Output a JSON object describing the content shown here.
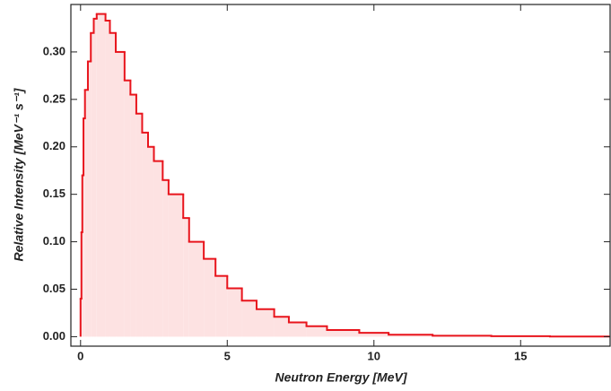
{
  "chart_data": {
    "type": "histogram",
    "xlabel": "Neutron Energy [MeV]",
    "ylabel": "Relative Intensity [MeV⁻¹ s⁻¹]",
    "bins": [
      0,
      0.03,
      0.06,
      0.1,
      0.15,
      0.25,
      0.35,
      0.45,
      0.55,
      0.85,
      1.0,
      1.2,
      1.5,
      1.7,
      1.9,
      2.1,
      2.3,
      2.5,
      2.8,
      3.0,
      3.5,
      3.7,
      4.2,
      4.6,
      5.0,
      5.5,
      6.0,
      6.6,
      7.1,
      7.7,
      8.4,
      9.5,
      10.5,
      12,
      14,
      16,
      18
    ],
    "values": [
      0.04,
      0.11,
      0.17,
      0.23,
      0.26,
      0.29,
      0.32,
      0.335,
      0.34,
      0.333,
      0.32,
      0.3,
      0.27,
      0.255,
      0.235,
      0.215,
      0.2,
      0.185,
      0.165,
      0.15,
      0.125,
      0.1,
      0.082,
      0.064,
      0.051,
      0.038,
      0.029,
      0.021,
      0.015,
      0.011,
      0.007,
      0.004,
      0.002,
      0.001,
      0.0005,
      0.0002
    ],
    "color": "#e8141c",
    "fill_color": "#fde2e2",
    "xlim": [
      -0.33,
      18.05
    ],
    "ylim": [
      -0.01,
      0.35
    ],
    "xticks": [
      0,
      5,
      10,
      15
    ],
    "yticks": [
      {
        "value": 0,
        "label": "0.00"
      },
      {
        "value": 0.05,
        "label": "0.05"
      },
      {
        "value": 0.1,
        "label": "0.10"
      },
      {
        "value": 0.15,
        "label": "0.15"
      },
      {
        "value": 0.2,
        "label": "0.20"
      },
      {
        "value": 0.25,
        "label": "0.25"
      },
      {
        "value": 0.3,
        "label": "0.30"
      }
    ]
  }
}
